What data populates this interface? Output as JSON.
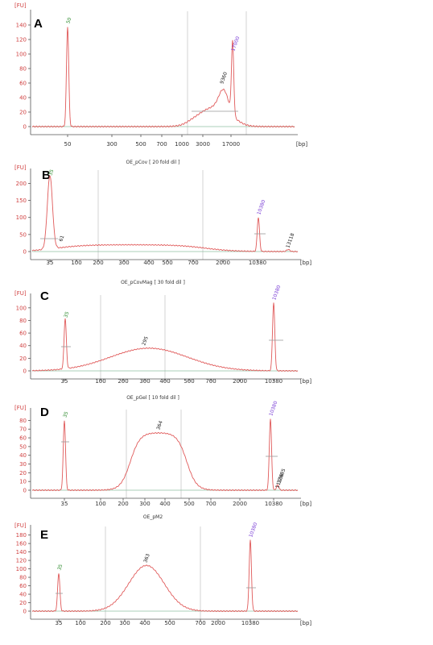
{
  "colors": {
    "trace": "#e05a5a",
    "axis_text": "#d04040",
    "lower_marker": "#2e8b2e",
    "upper_marker": "#7b3fd6",
    "peak_label": "#222222"
  },
  "chart_data": [
    {
      "label": "A",
      "title": "",
      "type": "line",
      "y_unit": "[FU]",
      "x_unit": "[bp]",
      "yticks": [
        0,
        20,
        40,
        60,
        80,
        100,
        120,
        140
      ],
      "xticks": [
        "50",
        "300",
        "500",
        "700",
        "1000",
        "3000",
        "17000"
      ],
      "peaks": [
        {
          "label": "50",
          "kind": "lower",
          "x": "50",
          "y": 138
        },
        {
          "label": "9360",
          "kind": "size",
          "x": "9360",
          "y": 55
        },
        {
          "label": "17000",
          "kind": "upper",
          "x": "17000",
          "y": 100
        }
      ]
    },
    {
      "label": "B",
      "title": "OE_pCov  [ 20 fold dil ]",
      "type": "line",
      "y_unit": "[FU]",
      "x_unit": "[bp]",
      "yticks": [
        0,
        50,
        100,
        150,
        200
      ],
      "xticks": [
        "35",
        "100",
        "200",
        "300",
        "400",
        "500",
        "700",
        "2000",
        "10380"
      ],
      "peaks": [
        {
          "label": "35",
          "kind": "lower",
          "x": "35",
          "y": 215
        },
        {
          "label": "61",
          "kind": "size",
          "x": "61",
          "y": 10
        },
        {
          "label": "10380",
          "kind": "upper",
          "x": "10380",
          "y": 100
        },
        {
          "label": "13118",
          "kind": "size",
          "x": "13118",
          "y": 5
        }
      ]
    },
    {
      "label": "C",
      "title": "OE_pCovMag  [ 30 fold dil ]",
      "type": "line",
      "y_unit": "[FU]",
      "x_unit": "[bp]",
      "yticks": [
        0,
        20,
        40,
        60,
        80,
        100
      ],
      "xticks": [
        "35",
        "100",
        "200",
        "300",
        "400",
        "500",
        "700",
        "2000",
        "10380"
      ],
      "peaks": [
        {
          "label": "35",
          "kind": "lower",
          "x": "35",
          "y": 80
        },
        {
          "label": "295",
          "kind": "size",
          "x": "295",
          "y": 36
        },
        {
          "label": "10380",
          "kind": "upper",
          "x": "10380",
          "y": 108
        }
      ]
    },
    {
      "label": "D",
      "title": "OE_pGel  [ 10 fold dil ]",
      "type": "line",
      "y_unit": "[FU]",
      "x_unit": "[bp]",
      "yticks": [
        0,
        10,
        20,
        30,
        40,
        50,
        60,
        70,
        80
      ],
      "xticks": [
        "35",
        "100",
        "200",
        "300",
        "400",
        "500",
        "700",
        "2000",
        "10380"
      ],
      "peaks": [
        {
          "label": "35",
          "kind": "lower",
          "x": "35",
          "y": 80
        },
        {
          "label": "364",
          "kind": "size",
          "x": "364",
          "y": 66
        },
        {
          "label": "10380",
          "kind": "upper",
          "x": "10380",
          "y": 82
        },
        {
          "label": "11356",
          "kind": "size",
          "x": "11356",
          "y": 5
        },
        {
          "label": "12685",
          "kind": "size",
          "x": "12685",
          "y": 3
        }
      ]
    },
    {
      "label": "E",
      "title": "OE_pM2",
      "type": "line",
      "y_unit": "[FU]",
      "x_unit": "[bp]",
      "yticks": [
        0,
        20,
        40,
        60,
        80,
        100,
        120,
        140,
        160,
        180
      ],
      "xticks": [
        "35",
        "100",
        "200",
        "300",
        "400",
        "500",
        "700",
        "2000",
        "10380"
      ],
      "peaks": [
        {
          "label": "35",
          "kind": "lower",
          "x": "35",
          "y": 90
        },
        {
          "label": "363",
          "kind": "size",
          "x": "363",
          "y": 108
        },
        {
          "label": "10380",
          "kind": "upper",
          "x": "10380",
          "y": 168
        }
      ]
    }
  ]
}
